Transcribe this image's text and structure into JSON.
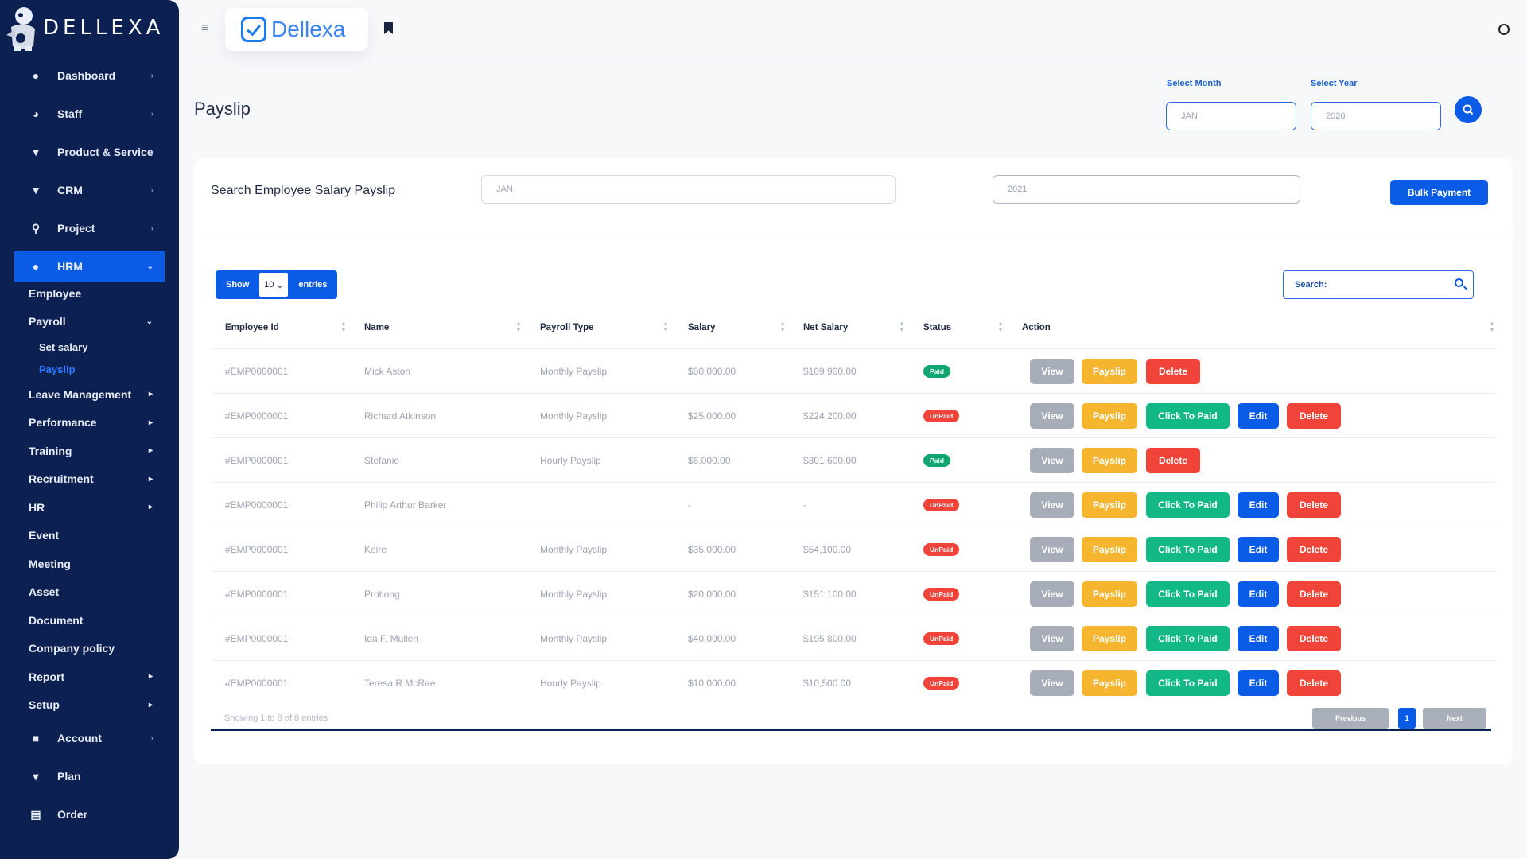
{
  "sidebar": {
    "brand": "DELLEXA",
    "top_items": [
      {
        "label": "Dashboard",
        "icon": "drop-icon",
        "chevron": "›"
      },
      {
        "label": "Staff",
        "icon": "users-icon",
        "chevron": "›"
      },
      {
        "label": "Product & Service",
        "icon": "cart-icon",
        "chevron": ""
      },
      {
        "label": "CRM",
        "icon": "filter-icon",
        "chevron": "›"
      },
      {
        "label": "Project",
        "icon": "network-icon",
        "chevron": "›"
      }
    ],
    "active_item": {
      "label": "HRM",
      "icon": "user-icon",
      "chevron": "⌄"
    },
    "hrm_sub": [
      {
        "label": "Employee",
        "chevron": ""
      },
      {
        "label": "Payroll",
        "chevron": "⌄"
      }
    ],
    "payroll_sub": [
      {
        "label": "Set salary"
      },
      {
        "label": "Payslip"
      }
    ],
    "hrm_sub_rest": [
      {
        "label": "Leave Management",
        "chevron": "▸"
      },
      {
        "label": "Performance",
        "chevron": "▸"
      },
      {
        "label": "Training",
        "chevron": "▸"
      },
      {
        "label": "Recruitment",
        "chevron": "▸"
      },
      {
        "label": "HR",
        "chevron": "▸"
      },
      {
        "label": "Event",
        "chevron": ""
      },
      {
        "label": "Meeting",
        "chevron": ""
      },
      {
        "label": "Asset",
        "chevron": ""
      },
      {
        "label": "Document",
        "chevron": ""
      },
      {
        "label": "Company policy",
        "chevron": ""
      },
      {
        "label": "Report",
        "chevron": "▸"
      },
      {
        "label": "Setup",
        "chevron": "▸"
      }
    ],
    "bottom_items": [
      {
        "label": "Account",
        "icon": "briefcase-icon",
        "chevron": "›"
      },
      {
        "label": "Plan",
        "icon": "trophy-icon",
        "chevron": ""
      },
      {
        "label": "Order",
        "icon": "cart-plus-icon",
        "chevron": ""
      }
    ]
  },
  "header": {
    "brand_text": "Dellexa",
    "menu_icon": "≡"
  },
  "page": {
    "title": "Payslip",
    "select_month_label": "Select Month",
    "select_month_value": "JAN",
    "select_year_label": "Select Year",
    "select_year_value": "2020"
  },
  "card": {
    "title": "Search Employee Salary Payslip",
    "month_value": "JAN",
    "year_value": "2021",
    "bulk_button": "Bulk Payment",
    "length_show": "Show",
    "length_value": "10",
    "length_entries": "entries",
    "search_label": "Search:"
  },
  "table": {
    "columns": [
      "Employee Id",
      "Name",
      "Payroll Type",
      "Salary",
      "Net Salary",
      "Status",
      "Action"
    ],
    "rows": [
      {
        "id": "#EMP0000001",
        "name": "Mick Aston",
        "type": "Monthly Payslip",
        "salary": "$50,000.00",
        "net": "$109,900.00",
        "status": "Paid"
      },
      {
        "id": "#EMP0000001",
        "name": "Richard Atkinson",
        "type": "Monthly Payslip",
        "salary": "$25,000.00",
        "net": "$224,200.00",
        "status": "UnPaid"
      },
      {
        "id": "#EMP0000001",
        "name": "Stefanie",
        "type": "Hourly Payslip",
        "salary": "$6,000.00",
        "net": "$301,600.00",
        "status": "Paid"
      },
      {
        "id": "#EMP0000001",
        "name": "Philip Arthur Barker",
        "type": "",
        "salary": "-",
        "net": "-",
        "status": "UnPaid"
      },
      {
        "id": "#EMP0000001",
        "name": "Keire",
        "type": "Monthly Payslip",
        "salary": "$35,000.00",
        "net": "$54,100.00",
        "status": "UnPaid"
      },
      {
        "id": "#EMP0000001",
        "name": "Protiong",
        "type": "Monthly Payslip",
        "salary": "$20,000.00",
        "net": "$151,100.00",
        "status": "UnPaid"
      },
      {
        "id": "#EMP0000001",
        "name": "Ida F. Mullen",
        "type": "Monthly Payslip",
        "salary": "$40,000.00",
        "net": "$195,800.00",
        "status": "UnPaid"
      },
      {
        "id": "#EMP0000001",
        "name": "Teresa R McRae",
        "type": "Hourly Payslip",
        "salary": "$10,000.00",
        "net": "$10,500.00",
        "status": "UnPaid"
      }
    ],
    "actions": {
      "view": "View",
      "payslip": "Payslip",
      "click_to_paid": "Click To Paid",
      "edit": "Edit",
      "delete": "Delete"
    },
    "info": "Showing 1 to 8 of 8 entries",
    "pagination": {
      "previous": "Previous",
      "current": "1",
      "next": "Next"
    }
  },
  "colors": {
    "sidebar_bg": "#0c2152",
    "primary": "#0a5be6",
    "paid": "#0ea56f",
    "unpaid": "#f0433a",
    "payslip": "#f6b52f",
    "click_to_paid": "#12b886",
    "view": "#a7adb8"
  }
}
